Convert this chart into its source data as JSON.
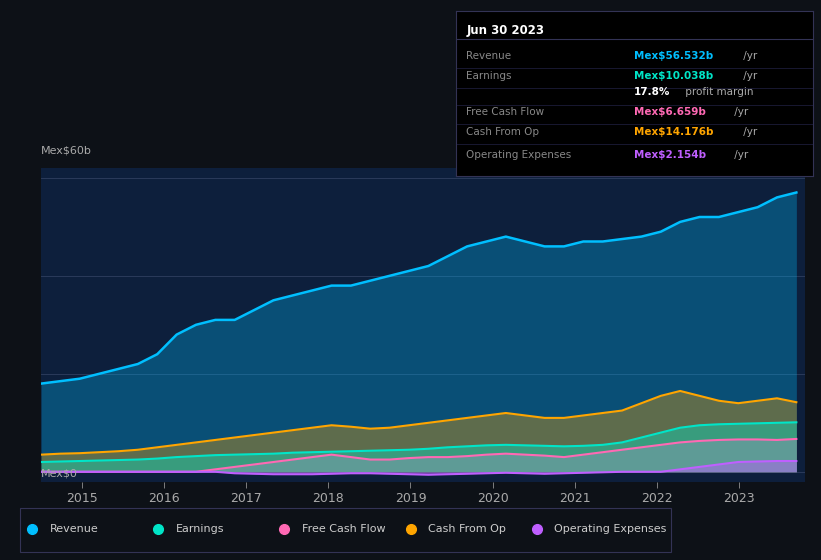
{
  "bg_color": "#0d1117",
  "plot_bg_color": "#0d1f3c",
  "ylabel_top": "Mex$60b",
  "ylabel_bottom": "Mex$0",
  "x_ticks": [
    2015,
    2016,
    2017,
    2018,
    2019,
    2020,
    2021,
    2022,
    2023
  ],
  "tooltip_title": "Jun 30 2023",
  "tooltip_rows": [
    {
      "label": "Revenue",
      "value": "Mex$56.532b",
      "suffix": " /yr",
      "color": "#00bfff"
    },
    {
      "label": "Earnings",
      "value": "Mex$10.038b",
      "suffix": " /yr",
      "color": "#00e5c8"
    },
    {
      "label": "",
      "value": "17.8%",
      "suffix": " profit margin",
      "color": "#ffffff"
    },
    {
      "label": "Free Cash Flow",
      "value": "Mex$6.659b",
      "suffix": " /yr",
      "color": "#ff69b4"
    },
    {
      "label": "Cash From Op",
      "value": "Mex$14.176b",
      "suffix": " /yr",
      "color": "#ffa500"
    },
    {
      "label": "Operating Expenses",
      "value": "Mex$2.154b",
      "suffix": " /yr",
      "color": "#bf5fff"
    }
  ],
  "legend": [
    {
      "label": "Revenue",
      "color": "#00bfff"
    },
    {
      "label": "Earnings",
      "color": "#00e5c8"
    },
    {
      "label": "Free Cash Flow",
      "color": "#ff69b4"
    },
    {
      "label": "Cash From Op",
      "color": "#ffa500"
    },
    {
      "label": "Operating Expenses",
      "color": "#bf5fff"
    }
  ],
  "revenue": [
    18,
    18.5,
    19,
    20,
    21,
    22,
    24,
    28,
    30,
    31,
    31,
    33,
    35,
    36,
    37,
    38,
    38,
    39,
    40,
    41,
    42,
    44,
    46,
    47,
    48,
    47,
    46,
    46,
    47,
    47,
    47.5,
    48,
    49,
    51,
    52,
    52,
    53,
    54,
    56,
    57
  ],
  "earnings": [
    2,
    2.1,
    2.2,
    2.3,
    2.4,
    2.5,
    2.7,
    3.0,
    3.2,
    3.4,
    3.5,
    3.6,
    3.7,
    3.9,
    4.0,
    4.1,
    4.2,
    4.3,
    4.4,
    4.5,
    4.7,
    5.0,
    5.2,
    5.4,
    5.5,
    5.4,
    5.3,
    5.2,
    5.3,
    5.5,
    6.0,
    7.0,
    8.0,
    9.0,
    9.5,
    9.7,
    9.8,
    9.9,
    10.0,
    10.1
  ],
  "free_cash_flow": [
    0,
    0,
    0,
    0,
    0,
    0,
    0,
    0,
    0,
    0.5,
    1.0,
    1.5,
    2.0,
    2.5,
    3.0,
    3.5,
    3.0,
    2.5,
    2.5,
    2.8,
    3.0,
    3.0,
    3.2,
    3.5,
    3.7,
    3.5,
    3.3,
    3.0,
    3.5,
    4.0,
    4.5,
    5.0,
    5.5,
    6.0,
    6.3,
    6.5,
    6.6,
    6.6,
    6.5,
    6.7
  ],
  "cash_from_op": [
    3.5,
    3.7,
    3.8,
    4.0,
    4.2,
    4.5,
    5.0,
    5.5,
    6.0,
    6.5,
    7.0,
    7.5,
    8.0,
    8.5,
    9.0,
    9.5,
    9.2,
    8.8,
    9.0,
    9.5,
    10.0,
    10.5,
    11.0,
    11.5,
    12.0,
    11.5,
    11.0,
    11.0,
    11.5,
    12.0,
    12.5,
    14.0,
    15.5,
    16.5,
    15.5,
    14.5,
    14.0,
    14.5,
    15.0,
    14.2
  ],
  "operating_expenses": [
    0,
    0,
    0,
    0,
    0,
    0,
    0,
    0,
    0,
    0,
    -0.3,
    -0.4,
    -0.5,
    -0.5,
    -0.5,
    -0.4,
    -0.3,
    -0.3,
    -0.4,
    -0.5,
    -0.6,
    -0.5,
    -0.4,
    -0.3,
    -0.2,
    -0.3,
    -0.4,
    -0.3,
    -0.2,
    -0.1,
    0,
    0,
    0,
    0.5,
    1.0,
    1.5,
    2.0,
    2.1,
    2.2,
    2.2
  ]
}
